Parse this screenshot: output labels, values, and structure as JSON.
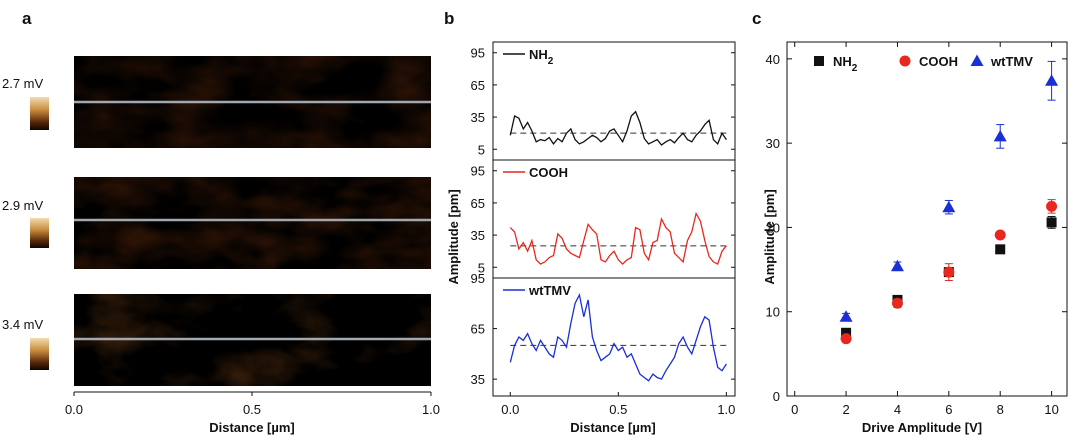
{
  "panel_labels": [
    "a",
    "b",
    "c"
  ],
  "panel_a": {
    "colorbar_labels": [
      "2.7 mV",
      "2.9 mV",
      "3.4 mV"
    ],
    "x_ticks": [
      "0.0",
      "0.5",
      "1.0"
    ],
    "xlabel": "Distance [µm]"
  },
  "colors": {
    "NH2": "#111111",
    "COOH": "#e8281e",
    "wtTMV": "#1a2fd6",
    "afm_dark": "#2a1205",
    "afm_light": "#f2dcb0",
    "profile_line": "#a0a8b0"
  },
  "chart_data": [
    {
      "type": "line",
      "panel": "b",
      "xlabel": "Distance [µm]",
      "ylabel": "Amplitude [pm]",
      "x_ticks": [
        "0.0",
        "0.5",
        "1.0"
      ],
      "xlim": [
        -0.08,
        1.04
      ],
      "y_ticks": [
        "5",
        "35",
        "65",
        "95"
      ],
      "subplots": [
        {
          "name": "NH₂",
          "name_main": "NH",
          "name_sub": "2",
          "color": "#111111",
          "ylim": [
            -5,
            105
          ],
          "dashed_y": 20,
          "x": [
            0.0,
            0.02,
            0.04,
            0.06,
            0.08,
            0.1,
            0.12,
            0.14,
            0.16,
            0.18,
            0.2,
            0.22,
            0.24,
            0.26,
            0.28,
            0.3,
            0.32,
            0.34,
            0.36,
            0.38,
            0.4,
            0.42,
            0.44,
            0.46,
            0.48,
            0.5,
            0.52,
            0.54,
            0.56,
            0.58,
            0.6,
            0.62,
            0.64,
            0.66,
            0.68,
            0.7,
            0.72,
            0.74,
            0.76,
            0.78,
            0.8,
            0.82,
            0.84,
            0.86,
            0.88,
            0.9,
            0.92,
            0.94,
            0.96,
            0.98,
            1.0
          ],
          "y": [
            18,
            36,
            34,
            24,
            30,
            22,
            12,
            14,
            13,
            16,
            10,
            15,
            12,
            20,
            24,
            14,
            10,
            12,
            15,
            18,
            16,
            12,
            15,
            22,
            24,
            18,
            12,
            22,
            36,
            40,
            30,
            15,
            10,
            12,
            14,
            9,
            12,
            14,
            11,
            16,
            20,
            14,
            12,
            18,
            22,
            28,
            32,
            14,
            10,
            20,
            14
          ]
        },
        {
          "name": "COOH",
          "color": "#e8281e",
          "ylim": [
            -5,
            105
          ],
          "dashed_y": 25,
          "x": [
            0.0,
            0.02,
            0.04,
            0.06,
            0.08,
            0.1,
            0.12,
            0.14,
            0.16,
            0.18,
            0.2,
            0.22,
            0.24,
            0.26,
            0.28,
            0.3,
            0.32,
            0.34,
            0.36,
            0.38,
            0.4,
            0.42,
            0.44,
            0.46,
            0.48,
            0.5,
            0.52,
            0.54,
            0.56,
            0.58,
            0.6,
            0.62,
            0.64,
            0.66,
            0.68,
            0.7,
            0.72,
            0.74,
            0.76,
            0.78,
            0.8,
            0.82,
            0.84,
            0.86,
            0.88,
            0.9,
            0.92,
            0.94,
            0.96,
            0.98,
            1.0
          ],
          "y": [
            42,
            38,
            22,
            28,
            20,
            30,
            12,
            8,
            10,
            14,
            16,
            36,
            32,
            22,
            18,
            16,
            14,
            30,
            45,
            40,
            36,
            12,
            10,
            16,
            20,
            12,
            8,
            12,
            14,
            42,
            40,
            18,
            12,
            28,
            30,
            50,
            42,
            38,
            18,
            14,
            10,
            30,
            38,
            55,
            48,
            30,
            15,
            10,
            8,
            20,
            25
          ]
        },
        {
          "name": "wtTMV",
          "color": "#1a2fd6",
          "ylim": [
            25,
            95
          ],
          "dashed_y": 55,
          "x": [
            0.0,
            0.02,
            0.04,
            0.06,
            0.08,
            0.1,
            0.12,
            0.14,
            0.16,
            0.18,
            0.2,
            0.22,
            0.24,
            0.26,
            0.28,
            0.3,
            0.32,
            0.34,
            0.36,
            0.38,
            0.4,
            0.42,
            0.44,
            0.46,
            0.48,
            0.5,
            0.52,
            0.54,
            0.56,
            0.58,
            0.6,
            0.62,
            0.64,
            0.66,
            0.68,
            0.7,
            0.72,
            0.74,
            0.76,
            0.78,
            0.8,
            0.82,
            0.84,
            0.86,
            0.88,
            0.9,
            0.92,
            0.94,
            0.96,
            0.98,
            1.0
          ],
          "y": [
            45,
            55,
            60,
            58,
            62,
            56,
            52,
            58,
            54,
            50,
            48,
            60,
            58,
            54,
            68,
            80,
            85,
            72,
            82,
            60,
            52,
            46,
            48,
            50,
            56,
            52,
            54,
            48,
            50,
            44,
            38,
            36,
            34,
            38,
            36,
            35,
            40,
            44,
            48,
            56,
            60,
            54,
            50,
            58,
            66,
            72,
            70,
            54,
            42,
            40,
            44
          ]
        }
      ]
    },
    {
      "type": "scatter",
      "panel": "c",
      "xlabel": "Drive Amplitude [V]",
      "ylabel": "Amplitude [pm]",
      "xlim": [
        -0.3,
        10.6
      ],
      "ylim": [
        0,
        42
      ],
      "x_ticks": [
        0,
        2,
        4,
        6,
        8,
        10
      ],
      "y_ticks": [
        0,
        10,
        20,
        30,
        40
      ],
      "legend_position": "top",
      "series": [
        {
          "name": "NH₂",
          "name_main": "NH",
          "name_sub": "2",
          "marker": "square",
          "color": "#111111",
          "x": [
            2,
            4,
            6,
            8,
            10
          ],
          "y": [
            7.5,
            11.4,
            14.7,
            17.4,
            20.6
          ],
          "err": [
            0.3,
            0.3,
            0.5,
            0.3,
            0.7
          ]
        },
        {
          "name": "COOH",
          "marker": "circle",
          "color": "#e8281e",
          "x": [
            2,
            4,
            6,
            8,
            10
          ],
          "y": [
            6.8,
            11.0,
            14.7,
            19.1,
            22.5
          ],
          "err": [
            0.3,
            0.5,
            1.0,
            0.3,
            0.8
          ]
        },
        {
          "name": "wtTMV",
          "marker": "triangle",
          "color": "#1a2fd6",
          "x": [
            2,
            4,
            6,
            8,
            10
          ],
          "y": [
            9.4,
            15.4,
            22.4,
            30.8,
            37.4
          ],
          "err": [
            0.4,
            0.5,
            0.8,
            1.4,
            2.3
          ]
        }
      ]
    }
  ]
}
